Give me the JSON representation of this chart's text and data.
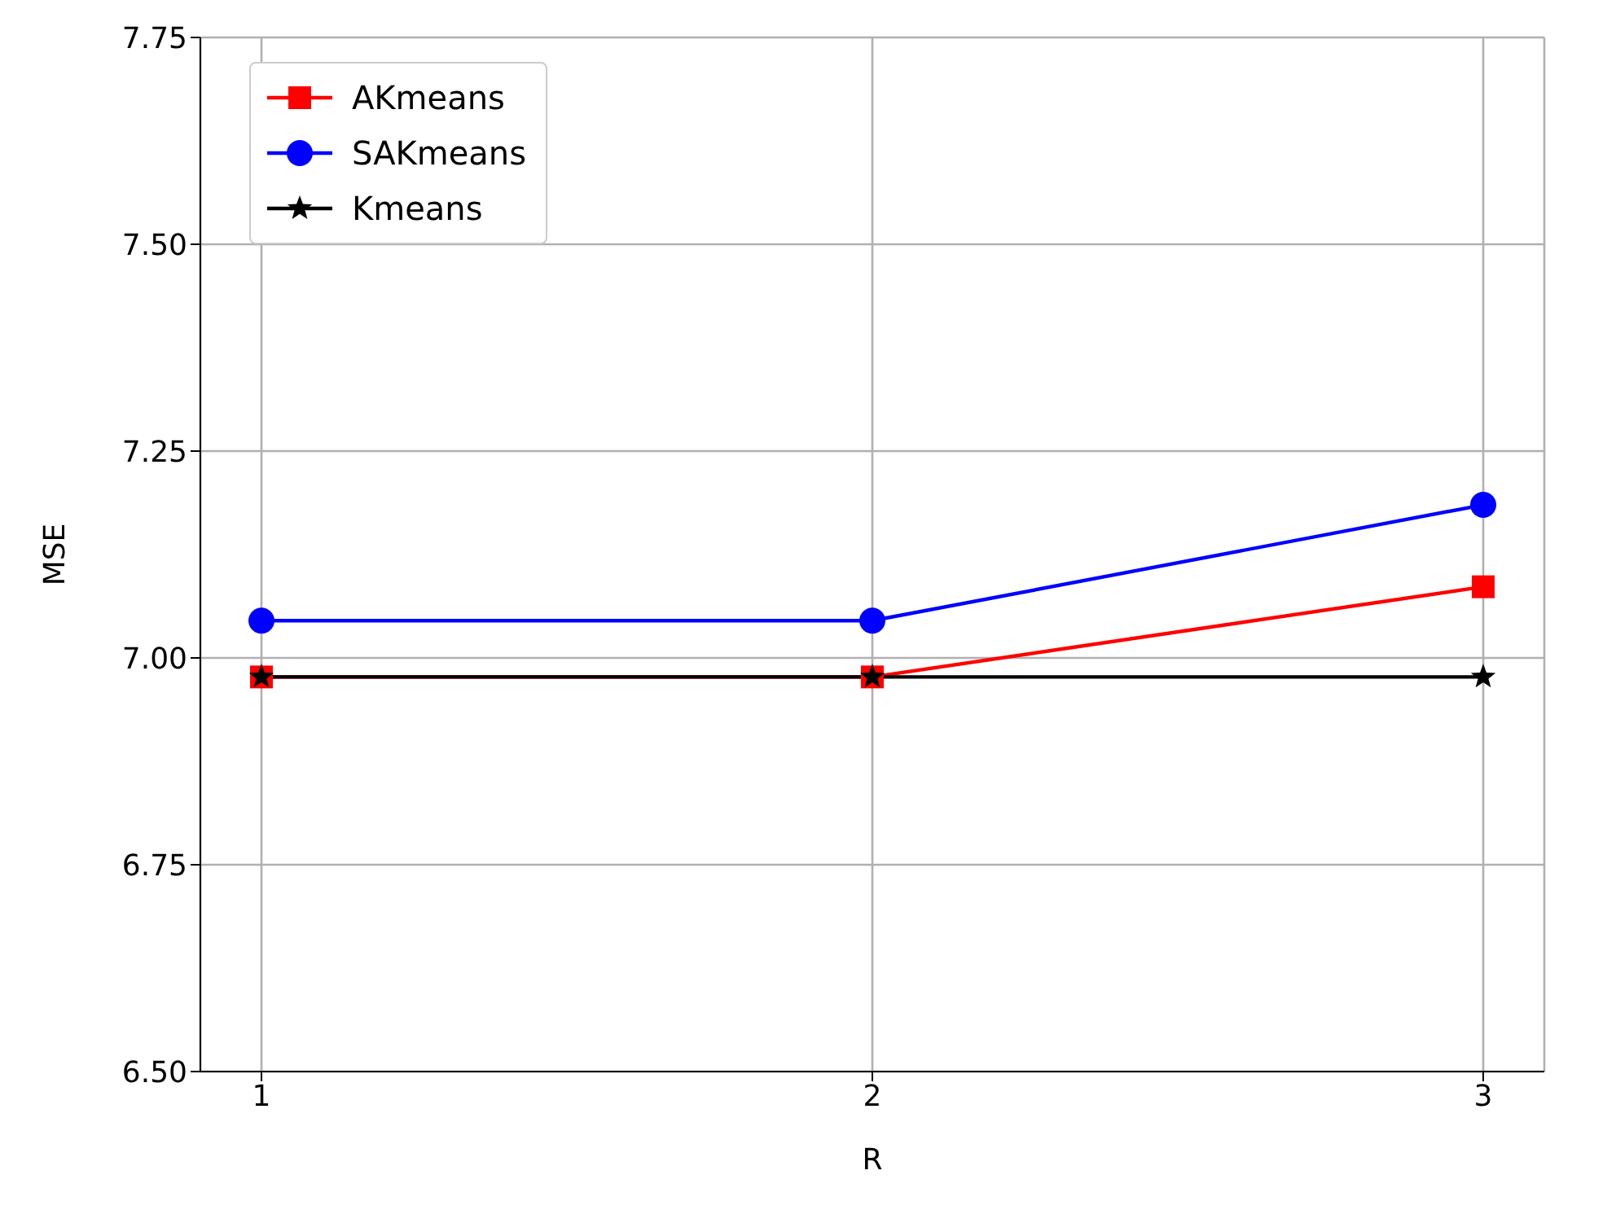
{
  "chart_data": {
    "type": "line",
    "xlabel": "R",
    "ylabel": "MSE",
    "x": [
      1,
      2,
      3
    ],
    "series": [
      {
        "name": "AKmeans",
        "color": "#ff0000",
        "marker": "square",
        "values": [
          6.977,
          6.977,
          7.086
        ]
      },
      {
        "name": "SAKmeans",
        "color": "#0000ff",
        "marker": "circle",
        "values": [
          7.045,
          7.045,
          7.185
        ]
      },
      {
        "name": "Kmeans",
        "color": "#000000",
        "marker": "star",
        "values": [
          6.977,
          6.977,
          6.977
        ]
      }
    ],
    "xlim": [
      0.9,
      3.1
    ],
    "xticks": [
      1,
      2,
      3
    ],
    "ylim": [
      6.5,
      7.75
    ],
    "yticks": [
      {
        "value": 6.5,
        "label": "6.50"
      },
      {
        "value": 6.75,
        "label": "6.75"
      },
      {
        "value": 7.0,
        "label": "7.00"
      },
      {
        "value": 7.25,
        "label": "7.25"
      },
      {
        "value": 7.5,
        "label": "7.50"
      },
      {
        "value": 7.75,
        "label": "7.75"
      }
    ],
    "grid": true,
    "legend": "top left",
    "line_style": "solid"
  }
}
